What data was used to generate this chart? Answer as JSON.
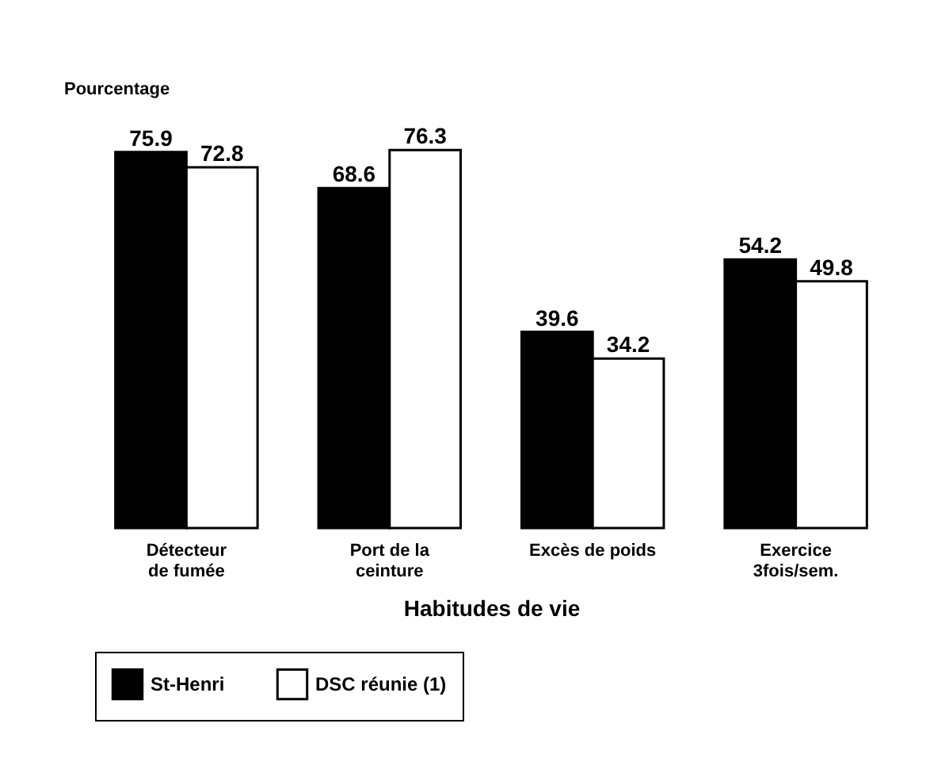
{
  "chart_data": {
    "type": "bar",
    "ylabel": "Pourcentage",
    "xlabel": "Habitudes de vie",
    "categories": [
      "Détecteur de fumée",
      "Port de la ceinture",
      "Excès de poids",
      "Exercice 3fois/sem."
    ],
    "series": [
      {
        "name": "St-Henri",
        "color": "#000000",
        "values": [
          75.9,
          68.6,
          39.6,
          54.2
        ]
      },
      {
        "name": "DSC réunie (1)",
        "color": "#ffffff",
        "values": [
          72.8,
          76.3,
          34.2,
          49.8
        ]
      }
    ],
    "data_labels": true,
    "legend": "bottom",
    "grid": false
  }
}
